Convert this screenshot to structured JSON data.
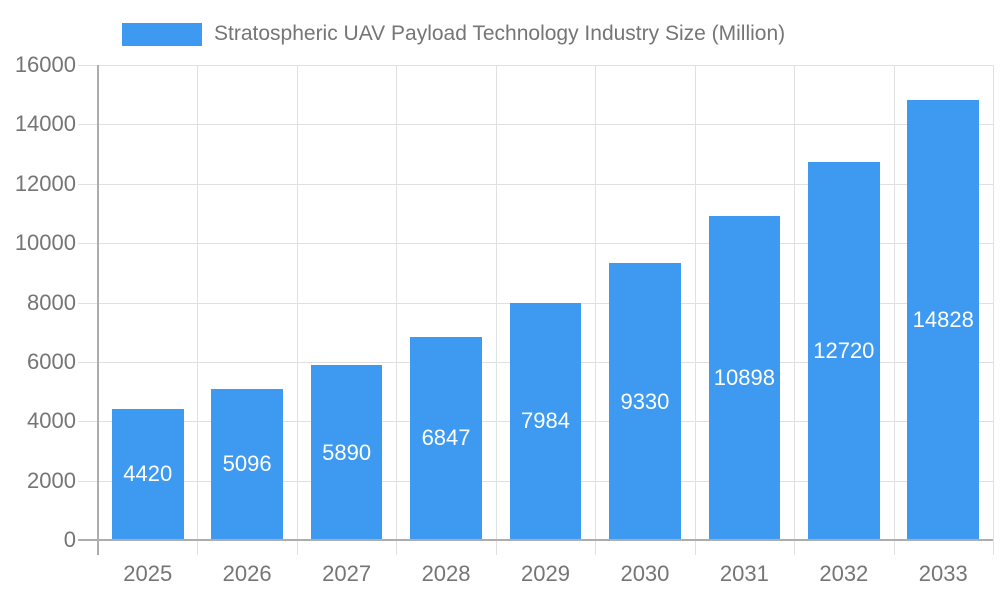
{
  "chart_data": {
    "type": "bar",
    "title": "Stratospheric UAV Payload Technology Industry Size (Million)",
    "legend": {
      "label": "Stratospheric UAV Payload Technology Industry Size (Million)"
    },
    "categories": [
      "2025",
      "2026",
      "2027",
      "2028",
      "2029",
      "2030",
      "2031",
      "2032",
      "2033"
    ],
    "values": [
      4420,
      5096,
      5890,
      6847,
      7984,
      9330,
      10898,
      12720,
      14828
    ],
    "xlabel": "",
    "ylabel": "",
    "ylim": [
      0,
      16000
    ],
    "yticks": [
      0,
      2000,
      4000,
      6000,
      8000,
      10000,
      12000,
      14000,
      16000
    ],
    "grid": true,
    "legend_position": "top",
    "colors": {
      "bar": "#3D9AF0",
      "value_label": "#FFFFFF",
      "axis_text": "#757575",
      "gridline": "#E0E0E0",
      "axis_line": "#ADADAD",
      "background": "#FFFFFF"
    }
  }
}
